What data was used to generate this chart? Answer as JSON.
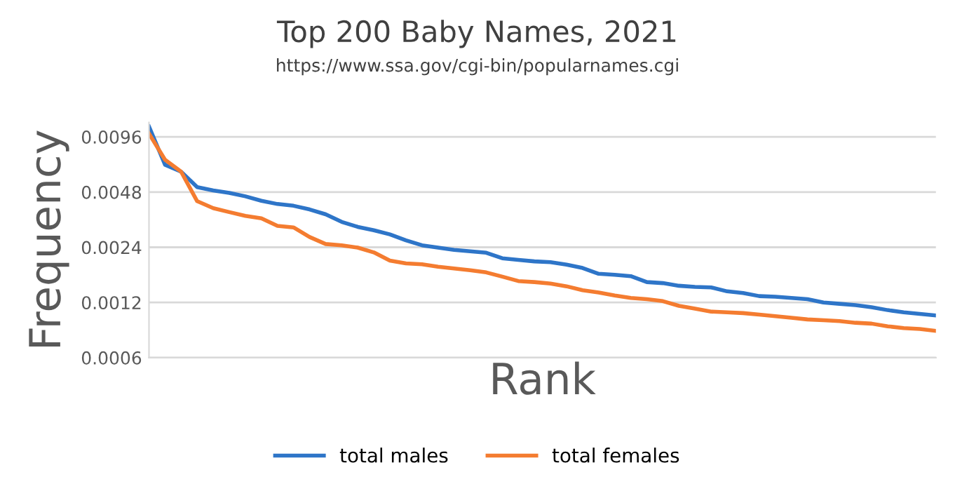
{
  "chart_data": {
    "type": "line",
    "title": "Top 200 Baby Names, 2021",
    "subtitle": "https://www.ssa.gov/cgi-bin/popularnames.cgi",
    "xlabel": "Rank",
    "ylabel": "Frequency",
    "log": "y",
    "grid": "y",
    "legend": "bottom",
    "tick_labels": "y",
    "marker": "none",
    "line_style": "solid",
    "ylim": [
      0.0006,
      0.0115
    ],
    "yticks": [
      0.0006,
      0.0012,
      0.0024,
      0.0048,
      0.0096
    ],
    "categories": [
      null,
      null,
      null,
      null,
      null,
      null,
      null,
      null,
      null,
      null,
      null,
      null,
      null,
      null,
      null,
      null,
      null,
      null,
      null,
      null,
      null,
      null,
      null,
      null,
      null,
      null,
      null,
      null,
      null,
      null,
      null,
      null,
      null,
      null,
      null,
      null,
      null,
      null,
      null,
      null,
      null,
      null,
      null,
      null,
      null,
      null,
      null,
      null,
      null,
      null
    ],
    "series": [
      {
        "name": "total males",
        "color": "#2e75c8",
        "values": [
          0.01093,
          0.00676,
          0.0062,
          0.00511,
          0.0049,
          0.00475,
          0.00455,
          0.0043,
          0.00413,
          0.00404,
          0.00386,
          0.00363,
          0.0033,
          0.0031,
          0.00297,
          0.00282,
          0.00262,
          0.00246,
          0.00239,
          0.00232,
          0.00228,
          0.00224,
          0.00209,
          0.00205,
          0.00201,
          0.00199,
          0.00193,
          0.00185,
          0.00172,
          0.0017,
          0.00167,
          0.00155,
          0.00153,
          0.00148,
          0.00146,
          0.00145,
          0.00138,
          0.00135,
          0.0013,
          0.00129,
          0.00127,
          0.00125,
          0.0012,
          0.00118,
          0.00116,
          0.00113,
          0.00109,
          0.00106,
          0.00104,
          0.00102
        ]
      },
      {
        "name": "total females",
        "color": "#f47c30",
        "values": [
          0.01001,
          0.0072,
          0.0062,
          0.00428,
          0.00392,
          0.00373,
          0.00356,
          0.00345,
          0.00314,
          0.00308,
          0.00273,
          0.0025,
          0.00246,
          0.00239,
          0.00225,
          0.00203,
          0.00196,
          0.00194,
          0.00188,
          0.00184,
          0.0018,
          0.00175,
          0.00166,
          0.00157,
          0.00155,
          0.00152,
          0.00147,
          0.0014,
          0.00136,
          0.00131,
          0.00127,
          0.00125,
          0.00122,
          0.00115,
          0.00111,
          0.00107,
          0.00106,
          0.00105,
          0.00103,
          0.00101,
          0.00099,
          0.00097,
          0.00096,
          0.00095,
          0.00093,
          0.00092,
          0.00089,
          0.00087,
          0.00086,
          0.00084
        ]
      }
    ]
  }
}
